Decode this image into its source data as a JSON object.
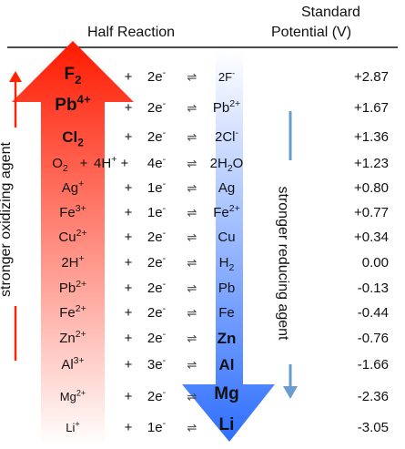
{
  "header": {
    "half_reaction": "Half Reaction",
    "standard_potential_line1": "Standard",
    "standard_potential_line2": "Potential (V)"
  },
  "labels": {
    "oxidizing": "stronger oxidizing agent",
    "reducing": "stronger reducing agent"
  },
  "colors": {
    "oxidizing_arrow_top": "#ff1a00",
    "oxidizing_arrow_bottom": "#ffffff",
    "reducing_arrow_top": "#ffffff",
    "reducing_arrow_bottom": "#2f6fff",
    "small_red_arrow": "#ff2200",
    "small_blue_arrow": "#6a9cd2"
  },
  "reactions": [
    {
      "oxidant": [
        {
          "t": "F"
        },
        {
          "t": "2",
          "s": "sub"
        }
      ],
      "ox_style": "bold-xl",
      "plus": "+",
      "coefficient": "",
      "electrons": [
        {
          "t": "2e"
        },
        {
          "t": "-",
          "s": "sup"
        }
      ],
      "equilibrium": "⇌",
      "reductant": [
        {
          "t": "2F"
        },
        {
          "t": "-",
          "s": "sup"
        }
      ],
      "red_style": "small",
      "potential": "+2.87"
    },
    {
      "oxidant": [
        {
          "t": "Pb"
        },
        {
          "t": "4+",
          "s": "sup"
        }
      ],
      "ox_style": "bold-xl",
      "plus": "+",
      "coefficient": "",
      "electrons": [
        {
          "t": "2e"
        },
        {
          "t": "-",
          "s": "sup"
        }
      ],
      "equilibrium": "⇌",
      "reductant": [
        {
          "t": "Pb"
        },
        {
          "t": "2+",
          "s": "sup"
        }
      ],
      "red_style": "normal",
      "potential": "+1.67"
    },
    {
      "oxidant": [
        {
          "t": "Cl"
        },
        {
          "t": "2",
          "s": "sub"
        }
      ],
      "ox_style": "bold-lg",
      "plus": "+",
      "coefficient": "",
      "electrons": [
        {
          "t": "2e"
        },
        {
          "t": "-",
          "s": "sup"
        }
      ],
      "equilibrium": "⇌",
      "reductant": [
        {
          "t": "2Cl"
        },
        {
          "t": "-",
          "s": "sup"
        }
      ],
      "red_style": "normal",
      "potential": "+1.36"
    },
    {
      "oxidant": [
        {
          "t": "O"
        },
        {
          "t": "2",
          "s": "sub"
        }
      ],
      "ox_style": "normal",
      "plus": "+",
      "coefficient": [
        {
          "t": "4H"
        },
        {
          "t": "+",
          "s": "sup"
        },
        {
          "t": " +"
        }
      ],
      "electrons": [
        {
          "t": "4e"
        },
        {
          "t": "-",
          "s": "sup"
        }
      ],
      "equilibrium": "⇌",
      "reductant": [
        {
          "t": "2H"
        },
        {
          "t": "2",
          "s": "sub"
        },
        {
          "t": "O"
        }
      ],
      "red_style": "normal",
      "potential": "+1.23"
    },
    {
      "oxidant": [
        {
          "t": "Ag"
        },
        {
          "t": "+",
          "s": "sup"
        }
      ],
      "ox_style": "normal",
      "plus": "+",
      "coefficient": "",
      "electrons": [
        {
          "t": "1e"
        },
        {
          "t": "-",
          "s": "sup"
        }
      ],
      "equilibrium": "⇌",
      "reductant": [
        {
          "t": "Ag"
        }
      ],
      "red_style": "normal",
      "potential": "+0.80"
    },
    {
      "oxidant": [
        {
          "t": "Fe"
        },
        {
          "t": "3+",
          "s": "sup"
        }
      ],
      "ox_style": "normal",
      "plus": "+",
      "coefficient": "",
      "electrons": [
        {
          "t": "1e"
        },
        {
          "t": "-",
          "s": "sup"
        }
      ],
      "equilibrium": "⇌",
      "reductant": [
        {
          "t": "Fe"
        },
        {
          "t": "2+",
          "s": "sup"
        }
      ],
      "red_style": "normal",
      "potential": "+0.77"
    },
    {
      "oxidant": [
        {
          "t": "Cu"
        },
        {
          "t": "2+",
          "s": "sup"
        }
      ],
      "ox_style": "normal",
      "plus": "+",
      "coefficient": "",
      "electrons": [
        {
          "t": "2e"
        },
        {
          "t": "-",
          "s": "sup"
        }
      ],
      "equilibrium": "⇌",
      "reductant": [
        {
          "t": "Cu"
        }
      ],
      "red_style": "normal",
      "potential": "+0.34"
    },
    {
      "oxidant": [
        {
          "t": "2H"
        },
        {
          "t": "+",
          "s": "sup"
        }
      ],
      "ox_style": "normal",
      "plus": "+",
      "coefficient": "",
      "electrons": [
        {
          "t": "2e"
        },
        {
          "t": "-",
          "s": "sup"
        }
      ],
      "equilibrium": "⇌",
      "reductant": [
        {
          "t": "H"
        },
        {
          "t": "2",
          "s": "sub"
        }
      ],
      "red_style": "normal",
      "potential": "0.00"
    },
    {
      "oxidant": [
        {
          "t": "Pb"
        },
        {
          "t": "2+",
          "s": "sup"
        }
      ],
      "ox_style": "normal",
      "plus": "+",
      "coefficient": "",
      "electrons": [
        {
          "t": "2e"
        },
        {
          "t": "-",
          "s": "sup"
        }
      ],
      "equilibrium": "⇌",
      "reductant": [
        {
          "t": "Pb"
        }
      ],
      "red_style": "normal",
      "potential": "-0.13"
    },
    {
      "oxidant": [
        {
          "t": "Fe"
        },
        {
          "t": "2+",
          "s": "sup"
        }
      ],
      "ox_style": "normal",
      "plus": "+",
      "coefficient": "",
      "electrons": [
        {
          "t": "2e"
        },
        {
          "t": "-",
          "s": "sup"
        }
      ],
      "equilibrium": "⇌",
      "reductant": [
        {
          "t": "Fe"
        }
      ],
      "red_style": "normal",
      "potential": "-0.44"
    },
    {
      "oxidant": [
        {
          "t": "Zn"
        },
        {
          "t": "2+",
          "s": "sup"
        }
      ],
      "ox_style": "normal",
      "plus": "+",
      "coefficient": "",
      "electrons": [
        {
          "t": "2e"
        },
        {
          "t": "-",
          "s": "sup"
        }
      ],
      "equilibrium": "⇌",
      "reductant": [
        {
          "t": "Zn"
        }
      ],
      "red_style": "bold-lg",
      "potential": "-0.76"
    },
    {
      "oxidant": [
        {
          "t": "Al"
        },
        {
          "t": "3+",
          "s": "sup"
        }
      ],
      "ox_style": "normal",
      "plus": "+",
      "coefficient": "",
      "electrons": [
        {
          "t": "3e"
        },
        {
          "t": "-",
          "s": "sup"
        }
      ],
      "equilibrium": "⇌",
      "reductant": [
        {
          "t": "Al"
        }
      ],
      "red_style": "bold-lg",
      "potential": "-1.66"
    },
    {
      "oxidant": [
        {
          "t": "Mg"
        },
        {
          "t": "2+",
          "s": "sup"
        }
      ],
      "ox_style": "small",
      "plus": "+",
      "coefficient": "",
      "electrons": [
        {
          "t": "2e"
        },
        {
          "t": "-",
          "s": "sup"
        }
      ],
      "equilibrium": "⇌",
      "reductant": [
        {
          "t": "Mg"
        }
      ],
      "red_style": "bold-xl",
      "potential": "-2.36"
    },
    {
      "oxidant": [
        {
          "t": "Li"
        },
        {
          "t": "+",
          "s": "sup"
        }
      ],
      "ox_style": "small",
      "plus": "+",
      "coefficient": "",
      "electrons": [
        {
          "t": "1e"
        },
        {
          "t": "-",
          "s": "sup"
        }
      ],
      "equilibrium": "⇌",
      "reductant": [
        {
          "t": "Li"
        }
      ],
      "red_style": "bold-xl",
      "potential": "-3.05"
    }
  ]
}
